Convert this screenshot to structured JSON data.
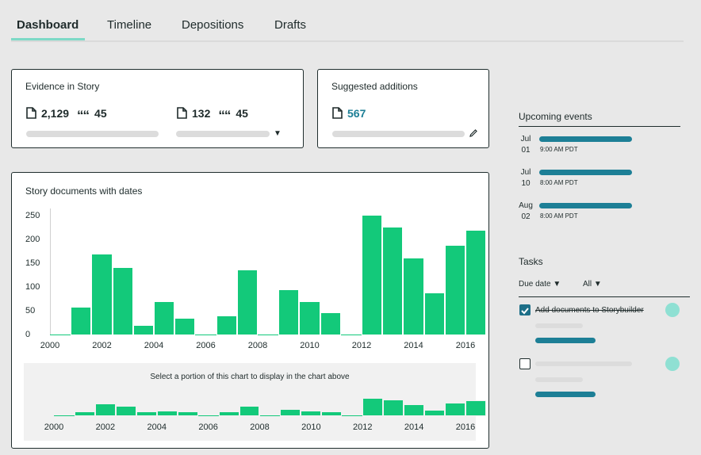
{
  "tabs": [
    {
      "label": "Dashboard",
      "active": true
    },
    {
      "label": "Timeline",
      "active": false
    },
    {
      "label": "Depositions",
      "active": false
    },
    {
      "label": "Drafts",
      "active": false
    }
  ],
  "evidence_card": {
    "title": "Evidence in Story",
    "docs_count_1": "2,129",
    "quotes_count_1": "45",
    "docs_count_2": "132",
    "quotes_count_2": "45"
  },
  "suggested_card": {
    "title": "Suggested additions",
    "count": "567"
  },
  "chart_card": {
    "title": "Story documents with dates",
    "overview_caption": "Select a portion of this chart to display in the chart above"
  },
  "chart_data": {
    "type": "bar",
    "title": "Story documents with dates",
    "x_start": 2000,
    "x_end": 2016,
    "bin_years": 0.8,
    "values": [
      0,
      60,
      172,
      144,
      21,
      71,
      37,
      0,
      42,
      138,
      0,
      97,
      71,
      49,
      0,
      253,
      228,
      163,
      90,
      190,
      221
    ],
    "ylim": [
      0,
      280
    ],
    "yticks": [
      0,
      50,
      100,
      150,
      200,
      250
    ],
    "xticks": [
      "2000",
      "2002",
      "2004",
      "2006",
      "2008",
      "2010",
      "2012",
      "2014",
      "2016"
    ],
    "bar_color": "#13c97a"
  },
  "upcoming_events": {
    "title": "Upcoming events",
    "items": [
      {
        "month": "Jul",
        "day": "01",
        "time": "9:00 AM PDT"
      },
      {
        "month": "Jul",
        "day": "10",
        "time": "8:00 AM PDT"
      },
      {
        "month": "Aug",
        "day": "02",
        "time": "8:00 AM PDT"
      }
    ]
  },
  "tasks": {
    "title": "Tasks",
    "filter_due": "Due date",
    "filter_all": "All",
    "items": [
      {
        "label": "Add documents to Storybuilder",
        "checked": true
      },
      {
        "label": "",
        "checked": false
      }
    ]
  },
  "colors": {
    "accent": "#1d7f96",
    "bar": "#13c97a",
    "underline": "#7dd9c6"
  }
}
